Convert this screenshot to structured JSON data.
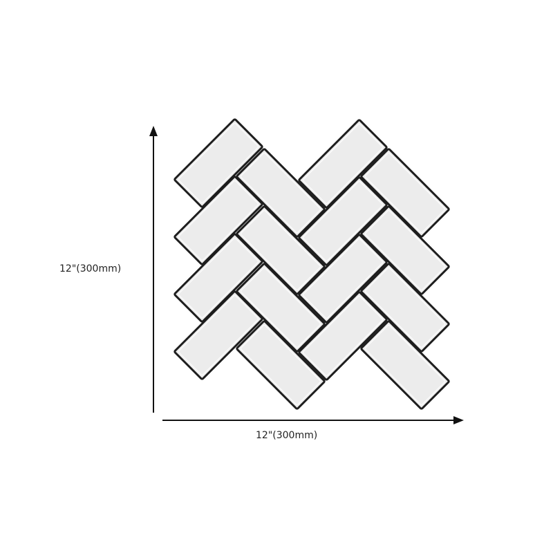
{
  "diagram": {
    "subject": "herringbone tile sheet",
    "width_label": "12\"(300mm)",
    "height_label": "12\"(300mm)",
    "colors": {
      "tile_fill": "#ececec",
      "grout": "#1e1e1e",
      "arrow": "#111111"
    },
    "tile_columns": [
      {
        "orientation": "up-right",
        "count": 4
      },
      {
        "orientation": "down-right",
        "count": 4
      },
      {
        "orientation": "up-right",
        "count": 4
      },
      {
        "orientation": "down-right",
        "count": 4
      }
    ]
  }
}
